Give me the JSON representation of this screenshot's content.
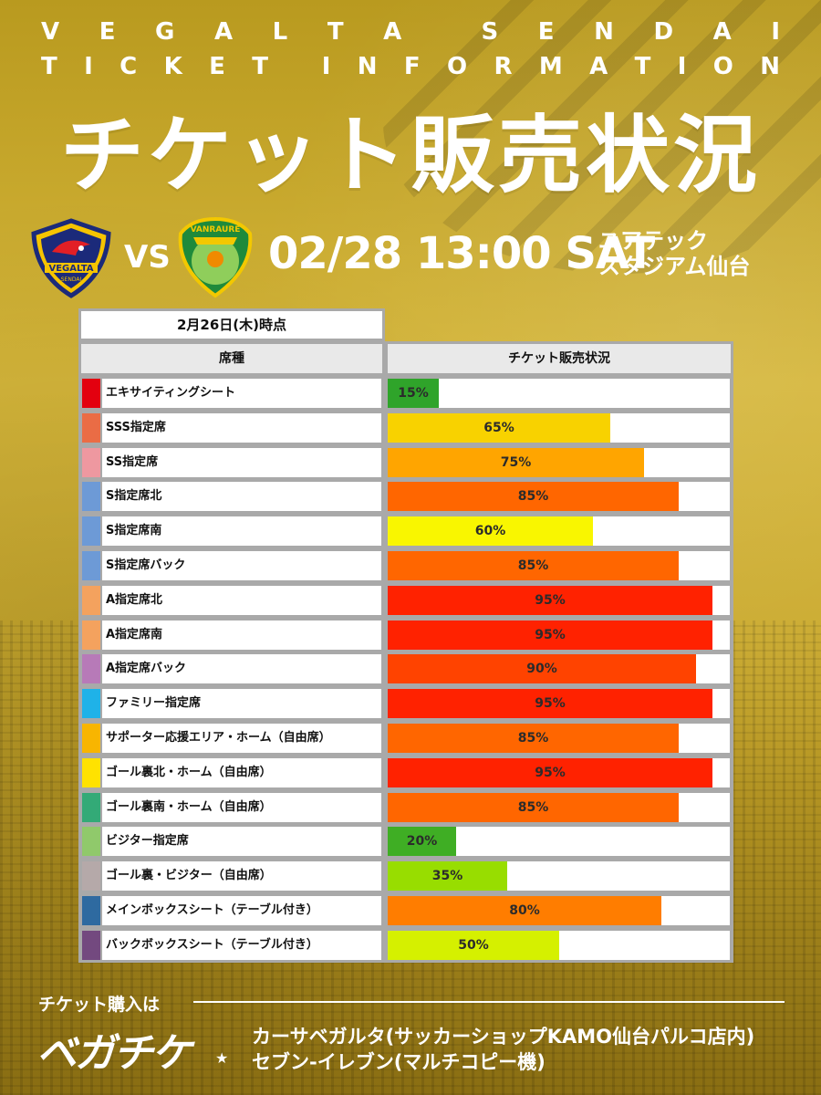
{
  "header": {
    "line1": [
      "V",
      "E",
      "G",
      "A",
      "L",
      "T",
      "A",
      " ",
      "S",
      "E",
      "N",
      "D",
      "A",
      "I"
    ],
    "line2": [
      "T",
      "I",
      "C",
      "K",
      "E",
      "T",
      " ",
      "I",
      "N",
      "F",
      "O",
      "R",
      "M",
      "A",
      "T",
      "I",
      "O",
      "N"
    ],
    "title": "チケット販売状況"
  },
  "match": {
    "home_crest_text": "VEGALTA",
    "home_crest_sub": "SENDAI",
    "away_crest_text": "VANRAURE",
    "vs": "VS",
    "datetime": "02/28 13:00 SAT",
    "venue_line1": "ユアテック",
    "venue_line2": "スタジアム仙台"
  },
  "table": {
    "as_of": "2月26日(木)時点",
    "col_seat": "席種",
    "col_status": "チケット販売状況",
    "rows": [
      {
        "seat": "エキサイティングシート",
        "percent": 15,
        "label": "15%",
        "swatch": "#e3000f",
        "bar": "#2fa42a"
      },
      {
        "seat": "SSS指定席",
        "percent": 65,
        "label": "65%",
        "swatch": "#ea6c45",
        "bar": "#f8d200"
      },
      {
        "seat": "SS指定席",
        "percent": 75,
        "label": "75%",
        "swatch": "#ee98a0",
        "bar": "#ffa500"
      },
      {
        "seat": "S指定席北",
        "percent": 85,
        "label": "85%",
        "swatch": "#6d9ad6",
        "bar": "#ff6600"
      },
      {
        "seat": "S指定席南",
        "percent": 60,
        "label": "60%",
        "swatch": "#6d9ad6",
        "bar": "#f9f600"
      },
      {
        "seat": "S指定席バック",
        "percent": 85,
        "label": "85%",
        "swatch": "#6d9ad6",
        "bar": "#ff6600"
      },
      {
        "seat": "A指定席北",
        "percent": 95,
        "label": "95%",
        "swatch": "#f4a25e",
        "bar": "#ff2200"
      },
      {
        "seat": "A指定席南",
        "percent": 95,
        "label": "95%",
        "swatch": "#f4a25e",
        "bar": "#ff2200"
      },
      {
        "seat": "A指定席バック",
        "percent": 90,
        "label": "90%",
        "swatch": "#b77ab8",
        "bar": "#ff4300"
      },
      {
        "seat": "ファミリー指定席",
        "percent": 95,
        "label": "95%",
        "swatch": "#1fb2e8",
        "bar": "#ff2200"
      },
      {
        "seat": "サポーター応援エリア・ホーム（自由席）",
        "percent": 85,
        "label": "85%",
        "swatch": "#f8b500",
        "bar": "#ff6600"
      },
      {
        "seat": "ゴール裏北・ホーム（自由席）",
        "percent": 95,
        "label": "95%",
        "swatch": "#ffe200",
        "bar": "#ff2200"
      },
      {
        "seat": "ゴール裏南・ホーム（自由席）",
        "percent": 85,
        "label": "85%",
        "swatch": "#33aa77",
        "bar": "#ff6600"
      },
      {
        "seat": "ビジター指定席",
        "percent": 20,
        "label": "20%",
        "swatch": "#90c96b",
        "bar": "#3fae24"
      },
      {
        "seat": "ゴール裏・ビジター（自由席）",
        "percent": 35,
        "label": "35%",
        "swatch": "#b5a9a9",
        "bar": "#98dd00"
      },
      {
        "seat": "メインボックスシート（テーブル付き）",
        "percent": 80,
        "label": "80%",
        "swatch": "#2e6aa0",
        "bar": "#ff7d00"
      },
      {
        "seat": "バックボックスシート（テーブル付き）",
        "percent": 50,
        "label": "50%",
        "swatch": "#73497f",
        "bar": "#d5f000"
      }
    ]
  },
  "footer": {
    "buy_label": "チケット購入は",
    "logo": "ベガチケ",
    "shop1": "カーサベガルタ(サッカーショップKAMO仙台パルコ店内)",
    "shop2": "セブン-イレブン(マルチコピー機)"
  }
}
